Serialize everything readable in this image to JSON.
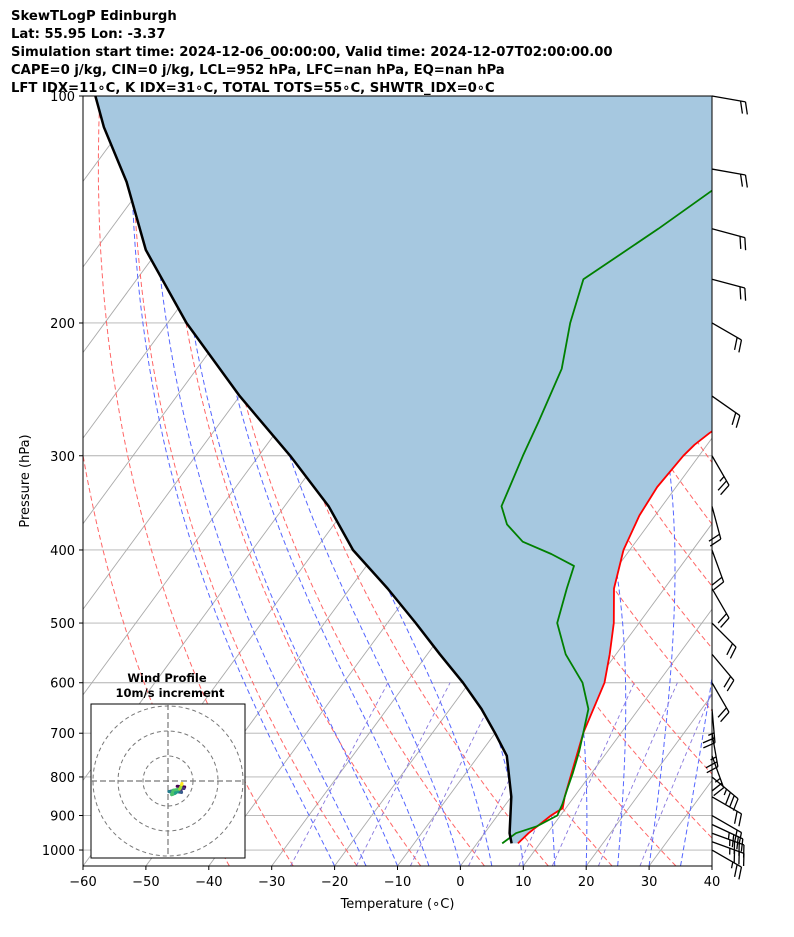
{
  "header": {
    "title": "SkewTLogP Edinburgh",
    "location": "Lat: 55.95   Lon: -3.37",
    "times": "Simulation start time: 2024-12-06_00:00:00, Valid time: 2024-12-07T02:00:00.00",
    "indices1": "CAPE=0 j/kg, CIN=0 j/kg, LCL=952 hPa, LFC=nan hPa, EQ=nan hPa",
    "indices2": "LFT IDX=11∘C, K IDX=31∘C, TOTAL TOTS=55∘C, SHWTR_IDX=0∘C"
  },
  "chart_data": {
    "type": "line",
    "subtype": "skew-T log-P diagram",
    "xlabel": "Temperature (∘C)",
    "ylabel": "Pressure (hPa)",
    "xlim": [
      -60,
      40
    ],
    "ylim": [
      1050,
      100
    ],
    "y_scale": "log",
    "grid": true,
    "x_ticks": [
      -60,
      -50,
      -40,
      -30,
      -20,
      -10,
      0,
      10,
      20,
      30,
      40
    ],
    "y_ticks": [
      100,
      200,
      300,
      400,
      500,
      600,
      700,
      800,
      900,
      1000
    ],
    "series": [
      {
        "role": "temperature",
        "color": "#ff0000",
        "points": [
          [
            8.5,
            850
          ],
          [
            9.5,
            880
          ],
          [
            8.5,
            900
          ],
          [
            7.0,
            950
          ],
          [
            6.5,
            980
          ],
          [
            4.0,
            700
          ],
          [
            1.5,
            600
          ],
          [
            -1.0,
            550
          ],
          [
            -4.0,
            500
          ],
          [
            -8.0,
            450
          ],
          [
            -11.0,
            400
          ],
          [
            -12.5,
            360
          ],
          [
            -13.0,
            330
          ],
          [
            -12.5,
            300
          ],
          [
            -12.0,
            290
          ],
          [
            -11.0,
            280
          ],
          [
            -7.0,
            250
          ],
          [
            -2.0,
            220
          ],
          [
            1.0,
            200
          ],
          [
            5.0,
            180
          ],
          [
            9.0,
            150
          ],
          [
            14.0,
            130
          ],
          [
            16.0,
            120
          ],
          [
            20.0,
            100
          ]
        ]
      },
      {
        "role": "dewpoint",
        "color": "#008000",
        "points": [
          [
            4.0,
            980
          ],
          [
            5.0,
            950
          ],
          [
            7.5,
            930
          ],
          [
            9.5,
            900
          ],
          [
            9.0,
            870
          ],
          [
            8.0,
            830
          ],
          [
            7.0,
            790
          ],
          [
            5.5,
            740
          ],
          [
            4.0,
            700
          ],
          [
            2.0,
            650
          ],
          [
            -2.0,
            600
          ],
          [
            -8.0,
            550
          ],
          [
            -13.0,
            500
          ],
          [
            -15.5,
            450
          ],
          [
            -17.0,
            420
          ],
          [
            -22.0,
            405
          ],
          [
            -28.0,
            390
          ],
          [
            -32.5,
            370
          ],
          [
            -35.5,
            350
          ],
          [
            -38.0,
            300
          ],
          [
            -39.5,
            270
          ],
          [
            -42.0,
            230
          ],
          [
            -46.0,
            200
          ],
          [
            -49.0,
            175
          ],
          [
            -43.0,
            150
          ],
          [
            -38.0,
            130
          ],
          [
            -33.0,
            110
          ],
          [
            -29.0,
            100
          ]
        ]
      },
      {
        "role": "parcel",
        "color": "#000000",
        "points": [
          [
            5.5,
            980
          ],
          [
            4.0,
            950
          ],
          [
            0.0,
            850
          ],
          [
            -5.5,
            750
          ],
          [
            -10.0,
            700
          ],
          [
            -15.0,
            650
          ],
          [
            -21.0,
            600
          ],
          [
            -28.0,
            550
          ],
          [
            -35.5,
            500
          ],
          [
            -44.0,
            450
          ],
          [
            -54.0,
            400
          ],
          [
            -63.0,
            350
          ],
          [
            -75.0,
            300
          ],
          [
            -90.0,
            250
          ],
          [
            -107.0,
            200
          ],
          [
            -122.0,
            160
          ],
          [
            -133.0,
            130
          ],
          [
            -143.0,
            110
          ],
          [
            -148.0,
            100
          ]
        ]
      }
    ],
    "shaded_region": {
      "between": [
        "parcel",
        "temperature"
      ],
      "color": "#a6c8e0"
    },
    "reference_lines": {
      "isotherms": {
        "color": "#aaaaaa",
        "style": "solid"
      },
      "dry_adiabats": {
        "color": "#ff6666",
        "style": "dashed"
      },
      "moist_adiabats": {
        "color": "#5566ff",
        "style": "dashed"
      },
      "mixing_ratio": {
        "color": "#8877dd",
        "style": "dashed"
      }
    },
    "wind_barbs": [
      {
        "p": 1000,
        "speed_kt": 15,
        "dir": 300
      },
      {
        "p": 975,
        "speed_kt": 25,
        "dir": 290
      },
      {
        "p": 950,
        "speed_kt": 25,
        "dir": 290
      },
      {
        "p": 925,
        "speed_kt": 25,
        "dir": 295
      },
      {
        "p": 900,
        "speed_kt": 20,
        "dir": 300
      },
      {
        "p": 850,
        "speed_kt": 20,
        "dir": 300
      },
      {
        "p": 800,
        "speed_kt": 25,
        "dir": 310
      },
      {
        "p": 750,
        "speed_kt": 15,
        "dir": 340
      },
      {
        "p": 700,
        "speed_kt": 15,
        "dir": 350
      },
      {
        "p": 650,
        "speed_kt": 15,
        "dir": 355
      },
      {
        "p": 600,
        "speed_kt": 20,
        "dir": 330
      },
      {
        "p": 550,
        "speed_kt": 20,
        "dir": 320
      },
      {
        "p": 500,
        "speed_kt": 20,
        "dir": 315
      },
      {
        "p": 450,
        "speed_kt": 20,
        "dir": 330
      },
      {
        "p": 400,
        "speed_kt": 20,
        "dir": 340
      },
      {
        "p": 350,
        "speed_kt": 20,
        "dir": 345
      },
      {
        "p": 300,
        "speed_kt": 15,
        "dir": 330
      },
      {
        "p": 250,
        "speed_kt": 20,
        "dir": 305
      },
      {
        "p": 200,
        "speed_kt": 20,
        "dir": 300
      },
      {
        "p": 175,
        "speed_kt": 20,
        "dir": 285
      },
      {
        "p": 150,
        "speed_kt": 20,
        "dir": 285
      },
      {
        "p": 125,
        "speed_kt": 20,
        "dir": 280
      },
      {
        "p": 100,
        "speed_kt": 20,
        "dir": 280
      }
    ],
    "inset": {
      "title": "Wind Profile",
      "subtitle": "10m/s increment",
      "rings": [
        10,
        20,
        30
      ],
      "trace_colormap": "viridis"
    }
  }
}
